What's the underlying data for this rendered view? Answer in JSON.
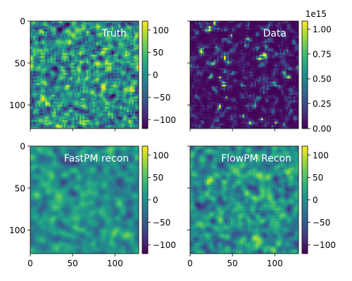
{
  "chart_data": [
    {
      "type": "heatmap",
      "title": "Truth",
      "xlabel": "",
      "ylabel": "",
      "xlim": [
        0,
        128
      ],
      "ylim": [
        0,
        128
      ],
      "x_ticks": [
        0,
        50,
        100
      ],
      "y_ticks": [
        0,
        50,
        100
      ],
      "show_x_ticklabels": false,
      "show_y_ticklabels": true,
      "colormap": "viridis",
      "colorbar": {
        "range": [
          -120,
          120
        ],
        "ticks": [
          -100,
          -50,
          0,
          50,
          100
        ],
        "tick_labels": [
          "−100",
          "−50",
          "0",
          "50",
          "100"
        ],
        "offset_text": ""
      },
      "field": {
        "resolution": 64,
        "smooth_passes": 1,
        "seed": 11,
        "transform": "gaussian",
        "spread": 0.55
      }
    },
    {
      "type": "heatmap",
      "title": "Data",
      "xlabel": "",
      "ylabel": "",
      "xlim": [
        0,
        128
      ],
      "ylim": [
        0,
        128
      ],
      "x_ticks": [
        0,
        50,
        100
      ],
      "y_ticks": [
        0,
        50,
        100
      ],
      "show_x_ticklabels": false,
      "show_y_ticklabels": false,
      "colormap": "viridis",
      "colorbar": {
        "range": [
          0,
          1.08
        ],
        "ticks": [
          0,
          0.25,
          0.5,
          0.75,
          1.0
        ],
        "tick_labels": [
          "0.00",
          "0.25",
          "0.50",
          "0.75",
          "1.00"
        ],
        "offset_text": "1e15"
      },
      "field": {
        "resolution": 64,
        "smooth_passes": 1,
        "seed": 23,
        "transform": "lognormal",
        "spread": 0.55
      }
    },
    {
      "type": "heatmap",
      "title": "FastPM recon",
      "xlabel": "",
      "ylabel": "",
      "xlim": [
        0,
        128
      ],
      "ylim": [
        0,
        128
      ],
      "x_ticks": [
        0,
        50,
        100
      ],
      "y_ticks": [
        0,
        50,
        100
      ],
      "show_x_ticklabels": true,
      "show_y_ticklabels": true,
      "colormap": "viridis",
      "colorbar": {
        "range": [
          -120,
          120
        ],
        "ticks": [
          -100,
          -50,
          0,
          50,
          100
        ],
        "tick_labels": [
          "−100",
          "−50",
          "0",
          "50",
          "100"
        ],
        "offset_text": ""
      },
      "field": {
        "resolution": 64,
        "smooth_passes": 3,
        "seed": 37,
        "transform": "gaussian",
        "spread": 0.3
      }
    },
    {
      "type": "heatmap",
      "title": "FlowPM Recon",
      "xlabel": "",
      "ylabel": "",
      "xlim": [
        0,
        128
      ],
      "ylim": [
        0,
        128
      ],
      "x_ticks": [
        0,
        50,
        100
      ],
      "y_ticks": [
        0,
        50,
        100
      ],
      "show_x_ticklabels": true,
      "show_y_ticklabels": false,
      "colormap": "viridis",
      "colorbar": {
        "range": [
          -120,
          120
        ],
        "ticks": [
          -100,
          -50,
          0,
          50,
          100
        ],
        "tick_labels": [
          "−100",
          "−50",
          "0",
          "50",
          "100"
        ],
        "offset_text": ""
      },
      "field": {
        "resolution": 64,
        "smooth_passes": 2,
        "seed": 53,
        "transform": "gaussian",
        "spread": 0.38
      }
    }
  ]
}
